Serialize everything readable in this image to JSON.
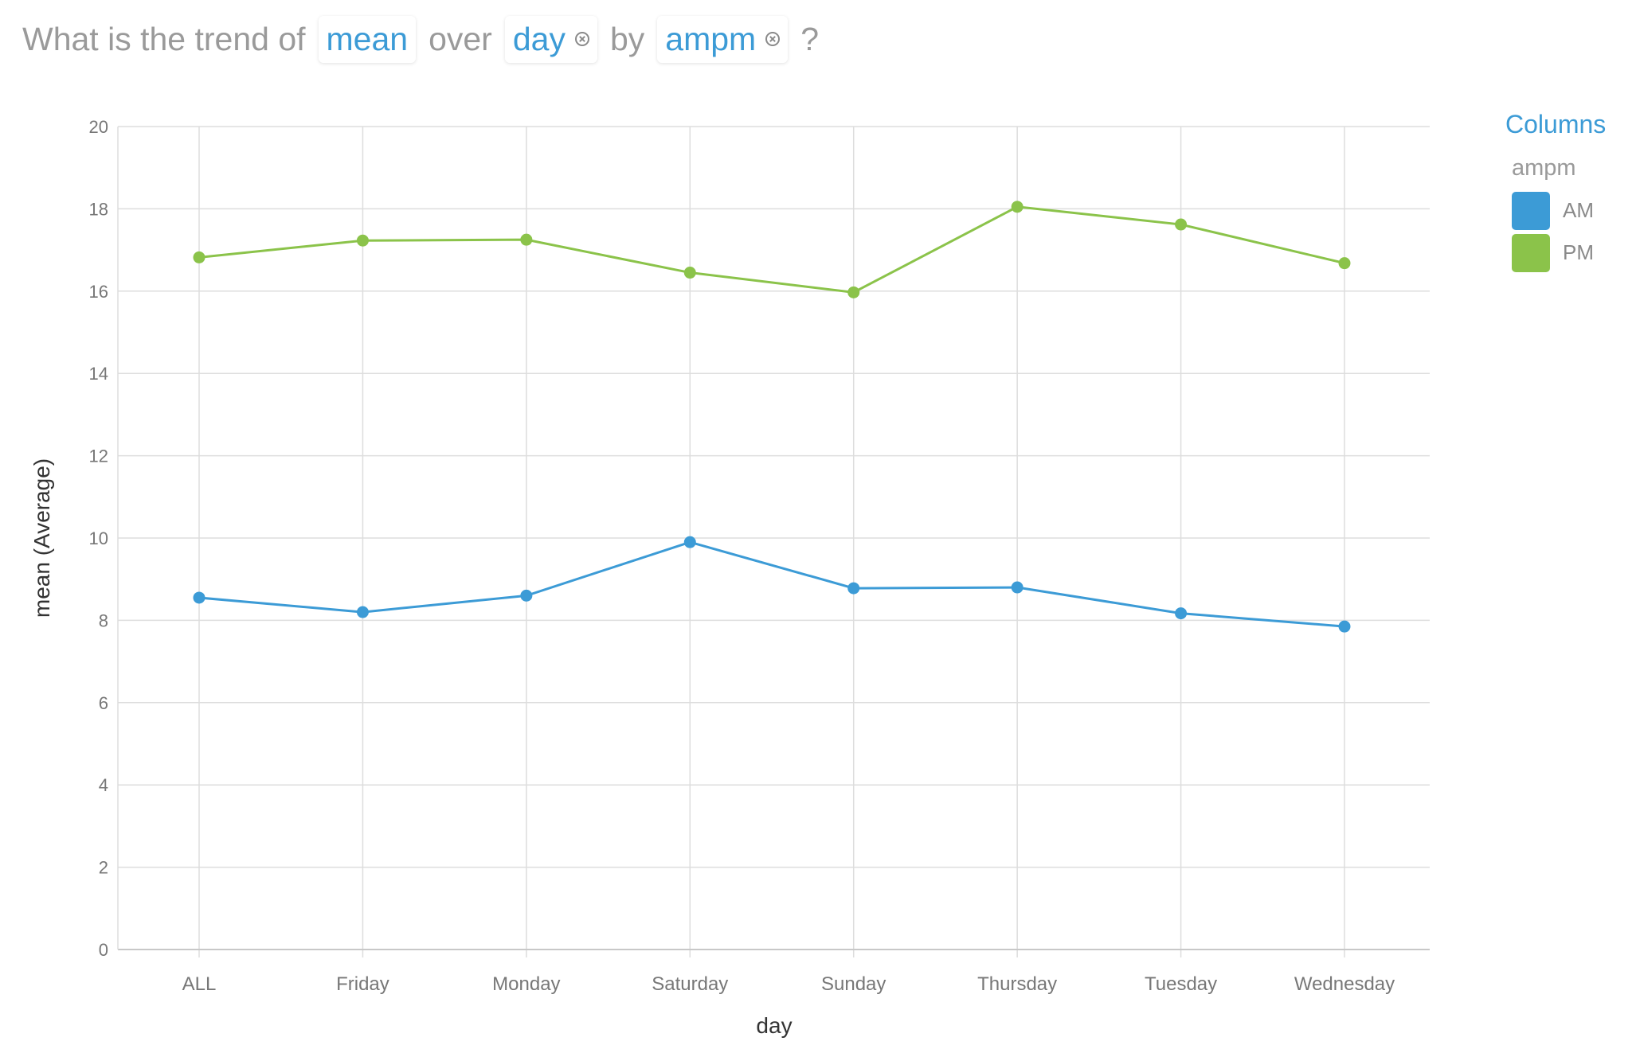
{
  "query": {
    "prefix": "What is the trend of",
    "measure": "mean",
    "over_word": "over",
    "dimension": "day",
    "by_word": "by",
    "group": "ampm",
    "suffix": "?"
  },
  "legend": {
    "title": "Columns",
    "group_label": "ampm",
    "items": [
      {
        "label": "AM",
        "color": "#3c9bd6"
      },
      {
        "label": "PM",
        "color": "#8bc34a"
      }
    ]
  },
  "chart_data": {
    "type": "line",
    "xlabel": "day",
    "ylabel": "mean (Average)",
    "categories": [
      "ALL",
      "Friday",
      "Monday",
      "Saturday",
      "Sunday",
      "Thursday",
      "Tuesday",
      "Wednesday"
    ],
    "ylim": [
      0,
      20
    ],
    "yticks": [
      0,
      2,
      4,
      6,
      8,
      10,
      12,
      14,
      16,
      18,
      20
    ],
    "grid": true,
    "legend_position": "top-right",
    "series": [
      {
        "name": "AM",
        "color": "#3c9bd6",
        "values": [
          8.55,
          8.2,
          8.6,
          9.9,
          8.78,
          8.8,
          8.17,
          7.85
        ]
      },
      {
        "name": "PM",
        "color": "#8bc34a",
        "values": [
          16.82,
          17.23,
          17.25,
          16.45,
          15.97,
          18.05,
          17.62,
          16.68
        ]
      }
    ]
  }
}
